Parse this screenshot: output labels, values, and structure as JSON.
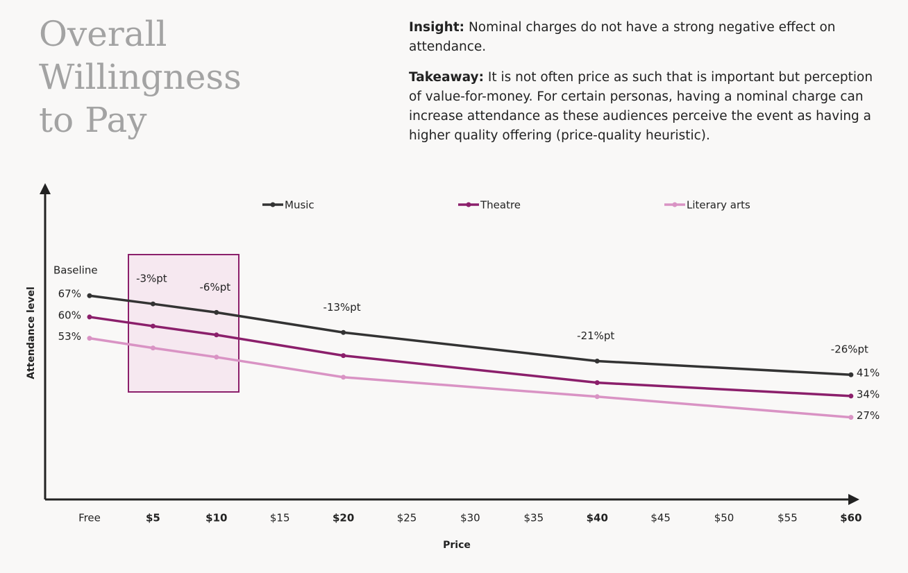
{
  "header": {
    "title": "Overall Willingness to Pay",
    "insight": {
      "label": "Insight:",
      "text": "Nominal charges do not have a strong negative effect on attendance."
    },
    "takeaway": {
      "label": "Takeaway:",
      "text": "It is not often price as such that is important but perception of value-for-money. For certain personas, having a nominal charge can increase attendance as these audiences perceive the event as having a higher quality offering (price-quality heuristic)."
    }
  },
  "chart_data": {
    "type": "line",
    "x_label": "Price",
    "y_label": "Attendance level",
    "x": [
      0,
      5,
      10,
      20,
      40,
      60
    ],
    "xlim": [
      -3.5,
      60.5
    ],
    "ylim": [
      0,
      104
    ],
    "xticks": [
      {
        "value": 0,
        "label": "Free"
      },
      {
        "value": 5,
        "label": "$5"
      },
      {
        "value": 10,
        "label": "$10"
      },
      {
        "value": 15,
        "label": "$15"
      },
      {
        "value": 20,
        "label": "$20"
      },
      {
        "value": 25,
        "label": "$25"
      },
      {
        "value": 30,
        "label": "$30"
      },
      {
        "value": 35,
        "label": "$35"
      },
      {
        "value": 40,
        "label": "$40"
      },
      {
        "value": 45,
        "label": "$45"
      },
      {
        "value": 50,
        "label": "$50"
      },
      {
        "value": 55,
        "label": "$55"
      },
      {
        "value": 60,
        "label": "$60"
      }
    ],
    "bold_xticks": [
      5,
      10,
      20,
      40,
      60
    ],
    "series": [
      {
        "name": "Music",
        "color": "#333333",
        "values": [
          67,
          64.3,
          61.5,
          54.9,
          45.5,
          41
        ],
        "value_labels": [
          "67%",
          null,
          null,
          null,
          null,
          "41%"
        ]
      },
      {
        "name": "Theatre",
        "color": "#8b1f6b",
        "values": [
          60,
          57,
          54.1,
          47.3,
          38.4,
          34
        ],
        "value_labels": [
          "60%",
          null,
          null,
          null,
          null,
          "34%"
        ]
      },
      {
        "name": "Literary arts",
        "color": "#d993c4",
        "values": [
          53,
          49.8,
          46.8,
          40.2,
          33.8,
          27
        ],
        "value_labels": [
          "53%",
          null,
          null,
          null,
          null,
          "27%"
        ]
      }
    ],
    "annotations": [
      {
        "x": 0,
        "text": "Baseline"
      },
      {
        "x": 5,
        "text": "-3%pt"
      },
      {
        "x": 10,
        "text": "-6%pt"
      },
      {
        "x": 20,
        "text": "-13%pt"
      },
      {
        "x": 40,
        "text": "-21%pt"
      },
      {
        "x": 60,
        "text": "-26%pt"
      }
    ]
  }
}
